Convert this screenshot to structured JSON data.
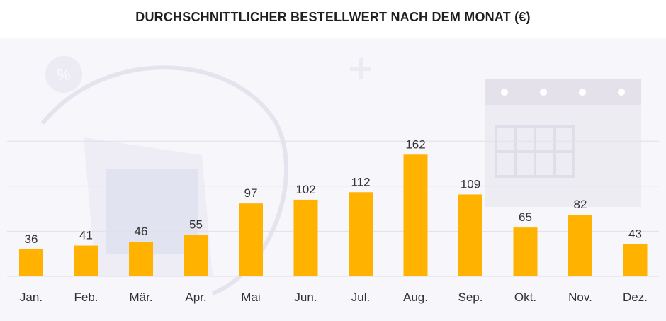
{
  "chart_data": {
    "type": "bar",
    "title": "DURCHSCHNITTLICHER BESTELLWERT NACH DEM MONAT (€)",
    "categories": [
      "Jan.",
      "Feb.",
      "Mär.",
      "Apr.",
      "Mai",
      "Jun.",
      "Jul.",
      "Aug.",
      "Sep.",
      "Okt.",
      "Nov.",
      "Dez."
    ],
    "values": [
      36,
      41,
      46,
      55,
      97,
      102,
      112,
      162,
      109,
      65,
      82,
      43
    ],
    "xlabel": "",
    "ylabel": "",
    "ylim": [
      0,
      180
    ],
    "grid": true,
    "bar_color": "#ffb300",
    "data_labels": true
  }
}
